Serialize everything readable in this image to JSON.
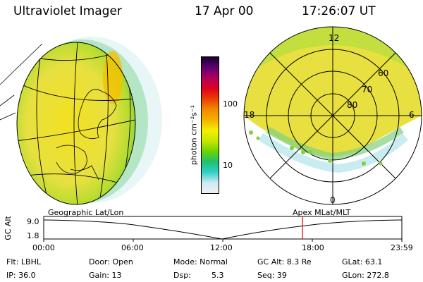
{
  "header": {
    "instrument": "Ultraviolet Imager",
    "date": "17 Apr 00",
    "time": "17:26:07 UT"
  },
  "colorbar": {
    "unit_label": "photon cm⁻²s⁻¹",
    "ticks": [
      "100",
      "10"
    ],
    "scale": "log",
    "colors": [
      "#f0f0f0",
      "#cfe9f0",
      "#2fd0c8",
      "#20c070",
      "#6cd400",
      "#c8e600",
      "#f2f000",
      "#f5b000",
      "#f08a00",
      "#e84000",
      "#e00020",
      "#b0005a",
      "#600070",
      "#150030"
    ]
  },
  "polar_plot": {
    "mlt_labels": [
      "12",
      "18",
      "6",
      "0"
    ],
    "lat_labels": [
      "60",
      "70",
      "80"
    ]
  },
  "altitude_strip": {
    "left_label": "Geographic Lat/Lon",
    "right_label": "Apex MLat/MLT",
    "axis_title": "GC Alt",
    "y_ticks": [
      "9.0",
      "1.8"
    ],
    "x_ticks": [
      "00:00",
      "06:00",
      "12:00",
      "18:00",
      "23:59"
    ]
  },
  "status": {
    "flt": "Flt: LBHL",
    "ip": "IP: 36.0",
    "door": "Door: Open",
    "gain": "Gain: 13",
    "mode": "Mode: Normal",
    "dsp_label": "Dsp:",
    "dsp_value": "5.3",
    "gc_alt": "GC Alt: 8.3 Re",
    "seq": "Seq: 39",
    "glat": "GLat: 63.1",
    "glon": "GLon: 272.8"
  }
}
